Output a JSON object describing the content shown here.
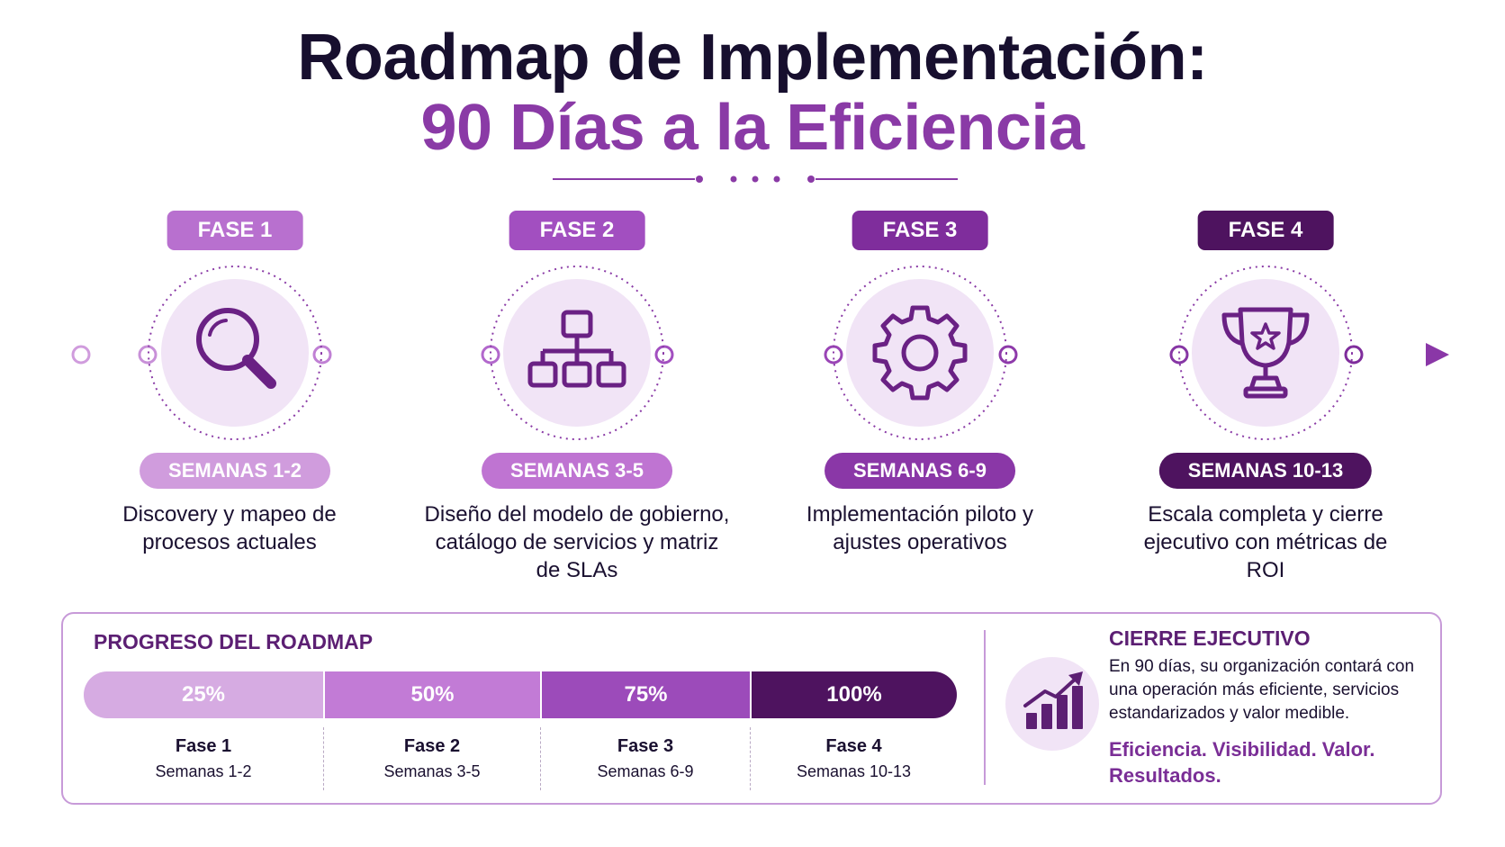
{
  "header": {
    "title_line1": "Roadmap de Implementación:",
    "title_line2": "90 Días a la Eficiencia"
  },
  "colors": {
    "phase1": "#b870cf",
    "phase2": "#a24fc0",
    "phase3": "#7f2d9c",
    "phase4": "#4e135f",
    "weeks1": "#d09cdd",
    "weeks2": "#bf74d2",
    "weeks3": "#8a37a7",
    "weeks4": "#4e135f",
    "title_dark": "#170f2e",
    "title_accent": "#8a3aa6"
  },
  "phases": [
    {
      "tag": "FASE 1",
      "weeks": "SEMANAS 1-2",
      "icon": "magnifier-icon",
      "description": "Discovery y mapeo de procesos actuales"
    },
    {
      "tag": "FASE 2",
      "weeks": "SEMANAS 3-5",
      "icon": "hierarchy-icon",
      "description": "Diseño del modelo de gobierno, catálogo de servicios y matriz de SLAs"
    },
    {
      "tag": "FASE 3",
      "weeks": "SEMANAS 6-9",
      "icon": "gear-icon",
      "description": "Implementación piloto y ajustes operativos"
    },
    {
      "tag": "FASE 4",
      "weeks": "SEMANAS 10-13",
      "icon": "trophy-icon",
      "description": "Escala completa y cierre ejecutivo con métricas de ROI"
    }
  ],
  "progress": {
    "title": "PROGRESO DEL ROADMAP",
    "segments": [
      {
        "percent": "25%",
        "name": "Fase 1",
        "weeks": "Semanas 1-2"
      },
      {
        "percent": "50%",
        "name": "Fase 2",
        "weeks": "Semanas 3-5"
      },
      {
        "percent": "75%",
        "name": "Fase 3",
        "weeks": "Semanas 6-9"
      },
      {
        "percent": "100%",
        "name": "Fase 4",
        "weeks": "Semanas 10-13"
      }
    ]
  },
  "closing": {
    "title": "CIERRE EJECUTIVO",
    "text": "En 90 días, su organización contará con una operación más eficiente, servicios estandarizados y valor medible.",
    "tagline": "Eficiencia. Visibilidad. Valor. Resultados.",
    "icon": "growth-chart-icon"
  }
}
